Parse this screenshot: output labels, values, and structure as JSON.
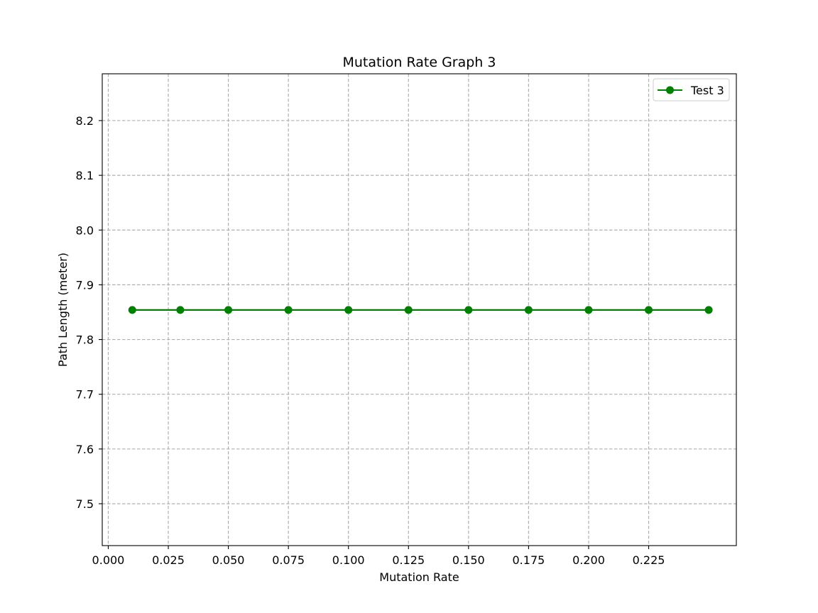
{
  "chart_data": {
    "type": "line",
    "title": "Mutation Rate Graph 3",
    "xlabel": "Mutation Rate",
    "ylabel": "Path Length (meter)",
    "xlim": [
      -0.0025,
      0.2615
    ],
    "ylim": [
      7.4235,
      8.2855
    ],
    "xticks": [
      0.0,
      0.025,
      0.05,
      0.075,
      0.1,
      0.125,
      0.15,
      0.175,
      0.2,
      0.225
    ],
    "xtick_labels": [
      "0.000",
      "0.025",
      "0.050",
      "0.075",
      "0.100",
      "0.125",
      "0.150",
      "0.175",
      "0.200",
      "0.225"
    ],
    "yticks": [
      7.5,
      7.6,
      7.7,
      7.8,
      7.9,
      8.0,
      8.1,
      8.2
    ],
    "ytick_labels": [
      "7.5",
      "7.6",
      "7.7",
      "7.8",
      "7.9",
      "8.0",
      "8.1",
      "8.2"
    ],
    "grid": true,
    "legend_position": "top-right",
    "series": [
      {
        "name": "Test 3",
        "color": "#008000",
        "marker": "circle",
        "x": [
          0.01,
          0.03,
          0.05,
          0.075,
          0.1,
          0.125,
          0.15,
          0.175,
          0.2,
          0.225,
          0.25
        ],
        "y": [
          7.854,
          7.854,
          7.854,
          7.854,
          7.854,
          7.854,
          7.854,
          7.854,
          7.854,
          7.854,
          7.854
        ]
      }
    ]
  }
}
